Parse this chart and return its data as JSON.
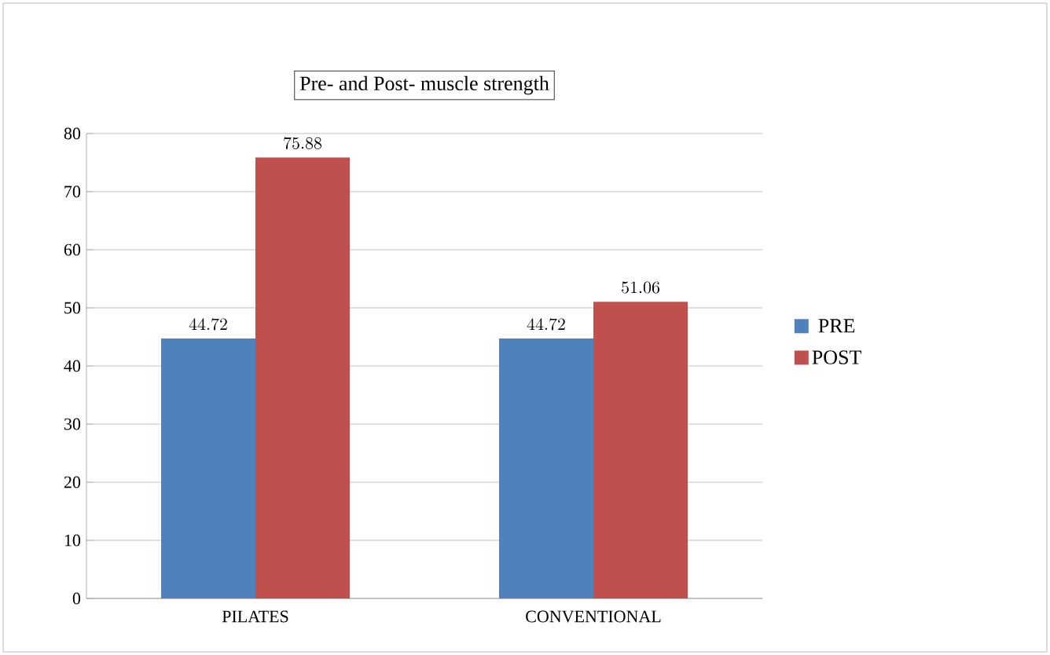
{
  "chart_data": {
    "type": "bar",
    "title": "Pre- and Post- muscle strength",
    "categories": [
      "PILATES",
      "CONVENTIONAL"
    ],
    "series": [
      {
        "name": "PRE",
        "color": "#4f81bd",
        "values": [
          44.72,
          44.72
        ]
      },
      {
        "name": "POST",
        "color": "#c0504d",
        "values": [
          75.88,
          51.06
        ]
      }
    ],
    "ylim": [
      0,
      80
    ],
    "yticks": [
      0,
      10,
      20,
      30,
      40,
      50,
      60,
      70,
      80
    ],
    "grid": "y",
    "legend": "right",
    "data_labels": true
  }
}
